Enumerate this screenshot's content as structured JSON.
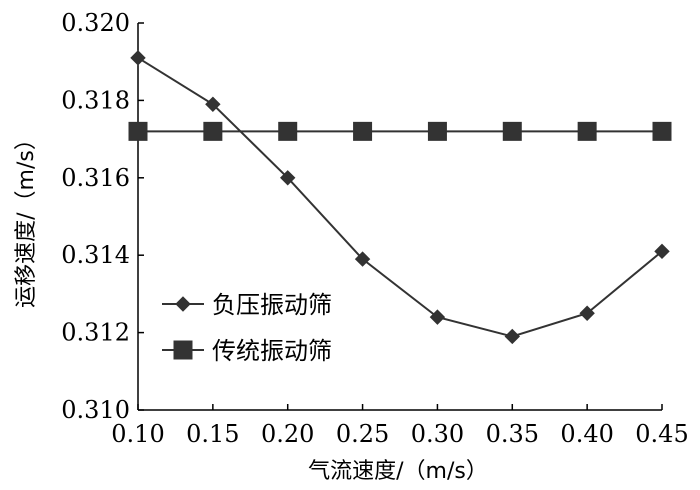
{
  "chart_data": {
    "type": "line",
    "title": "",
    "xlabel": "气流速度/（m/s）",
    "ylabel": "运移速度/（m/s）",
    "x": [
      0.1,
      0.15,
      0.2,
      0.25,
      0.3,
      0.35,
      0.4,
      0.45
    ],
    "xticks": [
      "0.10",
      "0.15",
      "0.20",
      "0.25",
      "0.30",
      "0.35",
      "0.40",
      "0.45"
    ],
    "yticks": [
      "0.310",
      "0.312",
      "0.314",
      "0.316",
      "0.318",
      "0.320"
    ],
    "xlim": [
      0.1,
      0.45
    ],
    "ylim": [
      0.31,
      0.32
    ],
    "grid": false,
    "legend_position": "center-left",
    "series": [
      {
        "name": "负压振动筛",
        "marker": "diamond",
        "color": "#333333",
        "values": [
          0.3191,
          0.3179,
          0.316,
          0.3139,
          0.3124,
          0.3119,
          0.3125,
          0.3141
        ]
      },
      {
        "name": "传统振动筛",
        "marker": "square",
        "color": "#333333",
        "values": [
          0.3172,
          0.3172,
          0.3172,
          0.3172,
          0.3172,
          0.3172,
          0.3172,
          0.3172
        ]
      }
    ]
  }
}
